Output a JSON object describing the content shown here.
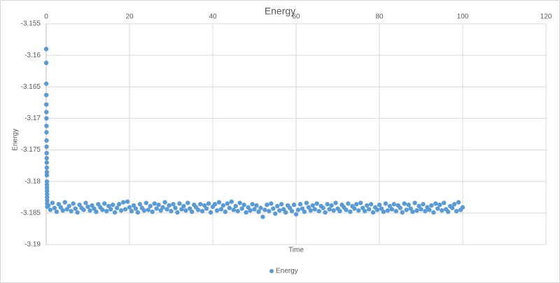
{
  "chart_data": {
    "type": "scatter",
    "title": "Energy",
    "x_label": "Time",
    "y_label": "Energy",
    "xlim": [
      0,
      120
    ],
    "xticks": [
      0,
      20,
      40,
      60,
      80,
      100,
      120
    ],
    "ylim": [
      -3.19,
      -3.155
    ],
    "yticks": [
      -3.19,
      -3.185,
      -3.18,
      -3.175,
      -3.17,
      -3.165,
      -3.16,
      -3.155
    ],
    "grid": true,
    "legend": "bottom",
    "series": [
      {
        "name": "Energy",
        "color": "#5b9bd5",
        "x": [
          0,
          0.01,
          0.02,
          0.03,
          0.04,
          0.05,
          0.06,
          0.07,
          0.08,
          0.09,
          0.1,
          0.11,
          0.12,
          0.13,
          0.14,
          0.15,
          0.16,
          0.17,
          0.18,
          0.19,
          0.2,
          0.21,
          0.22,
          0.23,
          0.24,
          0.25,
          0.5,
          1,
          1.5,
          2,
          2.5,
          3,
          3.5,
          4,
          4.5,
          5,
          5.5,
          6,
          6.5,
          7,
          7.5,
          8,
          8.5,
          9,
          9.5,
          10,
          10.5,
          11,
          11.5,
          12,
          12.5,
          13,
          13.5,
          14,
          14.5,
          15,
          15.5,
          16,
          16.5,
          17,
          17.5,
          18,
          18.5,
          19,
          19.5,
          20,
          20.5,
          21,
          21.5,
          22,
          22.5,
          23,
          23.5,
          24,
          24.5,
          25,
          25.5,
          26,
          26.5,
          27,
          27.5,
          28,
          28.5,
          29,
          29.5,
          30,
          30.5,
          31,
          31.5,
          32,
          32.5,
          33,
          33.5,
          34,
          34.5,
          35,
          35.5,
          36,
          36.5,
          37,
          37.5,
          38,
          38.5,
          39,
          39.5,
          40,
          40.5,
          41,
          41.5,
          42,
          42.5,
          43,
          43.5,
          44,
          44.5,
          45,
          45.5,
          46,
          46.5,
          47,
          47.5,
          48,
          48.5,
          49,
          49.5,
          50,
          50.5,
          51,
          51.5,
          52,
          52.5,
          53,
          53.5,
          54,
          54.5,
          55,
          55.5,
          56,
          56.5,
          57,
          57.5,
          58,
          58.5,
          59,
          59.5,
          60,
          60.5,
          61,
          61.5,
          62,
          62.5,
          63,
          63.5,
          64,
          64.5,
          65,
          65.5,
          66,
          66.5,
          67,
          67.5,
          68,
          68.5,
          69,
          69.5,
          70,
          70.5,
          71,
          71.5,
          72,
          72.5,
          73,
          73.5,
          74,
          74.5,
          75,
          75.5,
          76,
          76.5,
          77,
          77.5,
          78,
          78.5,
          79,
          79.5,
          80,
          80.5,
          81,
          81.5,
          82,
          82.5,
          83,
          83.5,
          84,
          84.5,
          85,
          85.5,
          86,
          86.5,
          87,
          87.5,
          88,
          88.5,
          89,
          89.5,
          90,
          90.5,
          91,
          91.5,
          92,
          92.5,
          93,
          93.5,
          94,
          94.5,
          95,
          95.5,
          96,
          96.5,
          97,
          97.5,
          98,
          98.5,
          99,
          99.5,
          100
        ],
        "values": [
          -3.159,
          -3.1612,
          -3.1645,
          -3.1663,
          -3.1678,
          -3.169,
          -3.17,
          -3.1712,
          -3.1722,
          -3.1735,
          -3.1745,
          -3.1755,
          -3.1763,
          -3.177,
          -3.1778,
          -3.1785,
          -3.179,
          -3.18,
          -3.1805,
          -3.181,
          -3.1815,
          -3.182,
          -3.1825,
          -3.183,
          -3.1835,
          -3.184,
          -3.1838,
          -3.1845,
          -3.1834,
          -3.1842,
          -3.1848,
          -3.1836,
          -3.1841,
          -3.1846,
          -3.1833,
          -3.1844,
          -3.1839,
          -3.1847,
          -3.1835,
          -3.1843,
          -3.1849,
          -3.1837,
          -3.1842,
          -3.1845,
          -3.1834,
          -3.184,
          -3.1846,
          -3.1838,
          -3.1843,
          -3.1848,
          -3.1836,
          -3.1841,
          -3.1845,
          -3.1835,
          -3.1847,
          -3.1839,
          -3.1844,
          -3.1837,
          -3.1849,
          -3.1842,
          -3.1836,
          -3.1846,
          -3.1833,
          -3.1844,
          -3.1832,
          -3.1841,
          -3.1847,
          -3.1838,
          -3.1843,
          -3.1849,
          -3.1836,
          -3.1842,
          -3.1846,
          -3.1834,
          -3.1845,
          -3.1839,
          -3.1848,
          -3.1835,
          -3.1843,
          -3.1837,
          -3.1846,
          -3.1841,
          -3.1833,
          -3.1844,
          -3.1838,
          -3.1847,
          -3.1836,
          -3.1842,
          -3.1849,
          -3.1835,
          -3.1844,
          -3.1839,
          -3.1846,
          -3.1834,
          -3.1843,
          -3.1848,
          -3.1837,
          -3.1841,
          -3.1845,
          -3.1836,
          -3.1847,
          -3.1838,
          -3.1843,
          -3.1835,
          -3.1849,
          -3.184,
          -3.1836,
          -3.1846,
          -3.1833,
          -3.1844,
          -3.1838,
          -3.1848,
          -3.1835,
          -3.1842,
          -3.1832,
          -3.1845,
          -3.1839,
          -3.1847,
          -3.1834,
          -3.1843,
          -3.1837,
          -3.1849,
          -3.1841,
          -3.1846,
          -3.1836,
          -3.1844,
          -3.1838,
          -3.1848,
          -3.1842,
          -3.1856,
          -3.1845,
          -3.1837,
          -3.1847,
          -3.1835,
          -3.1843,
          -3.1851,
          -3.1839,
          -3.1846,
          -3.1836,
          -3.1844,
          -3.1849,
          -3.1838,
          -3.1842,
          -3.1847,
          -3.1837,
          -3.1852,
          -3.1845,
          -3.1836,
          -3.1843,
          -3.1848,
          -3.1834,
          -3.1841,
          -3.1846,
          -3.1838,
          -3.1844,
          -3.1835,
          -3.1847,
          -3.1839,
          -3.1842,
          -3.1849,
          -3.1836,
          -3.1844,
          -3.1838,
          -3.1846,
          -3.1834,
          -3.1843,
          -3.1847,
          -3.1837,
          -3.1841,
          -3.1845,
          -3.1835,
          -3.1848,
          -3.1839,
          -3.1843,
          -3.1836,
          -3.1846,
          -3.1834,
          -3.1842,
          -3.1847,
          -3.1838,
          -3.1844,
          -3.1836,
          -3.1849,
          -3.1841,
          -3.1845,
          -3.1837,
          -3.1843,
          -3.1848,
          -3.1835,
          -3.1846,
          -3.1839,
          -3.1844,
          -3.1836,
          -3.1847,
          -3.1838,
          -3.1842,
          -3.1849,
          -3.1835,
          -3.1845,
          -3.1837,
          -3.1843,
          -3.1848,
          -3.1834,
          -3.1846,
          -3.1839,
          -3.1844,
          -3.1836,
          -3.1847,
          -3.1841,
          -3.1845,
          -3.1838,
          -3.1849,
          -3.1835,
          -3.1843,
          -3.1837,
          -3.1846,
          -3.1834,
          -3.1844,
          -3.1848,
          -3.1839,
          -3.1842,
          -3.1836,
          -3.1847,
          -3.1833,
          -3.1845,
          -3.1841
        ]
      }
    ]
  }
}
